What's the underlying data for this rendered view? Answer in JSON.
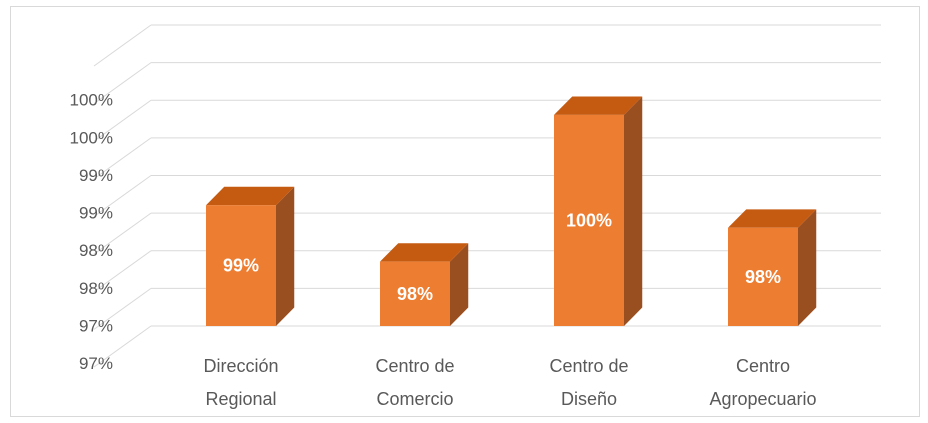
{
  "chart_data": {
    "type": "bar",
    "style": "3d-column",
    "categories": [
      [
        "Dirección",
        "Regional"
      ],
      [
        "Centro de",
        "Comercio"
      ],
      [
        "Centro de",
        "Diseño"
      ],
      [
        "Centro",
        "Agropecuario"
      ]
    ],
    "values": [
      98.65,
      97.9,
      99.85,
      98.35
    ],
    "data_labels": [
      "99%",
      "98%",
      "100%",
      "98%"
    ],
    "y_tick_labels": [
      "97%",
      "97%",
      "98%",
      "98%",
      "99%",
      "99%",
      "100%",
      "100%"
    ],
    "ylim": [
      96.5,
      100.5
    ],
    "grid": true,
    "legend": "none",
    "title": "",
    "xlabel": "",
    "ylabel": "",
    "colors": {
      "bar_front": "#ED7D31",
      "bar_side": "#9A4F20",
      "bar_top": "#C55A11",
      "grid": "#d9d9d9",
      "text": "#595959"
    }
  }
}
